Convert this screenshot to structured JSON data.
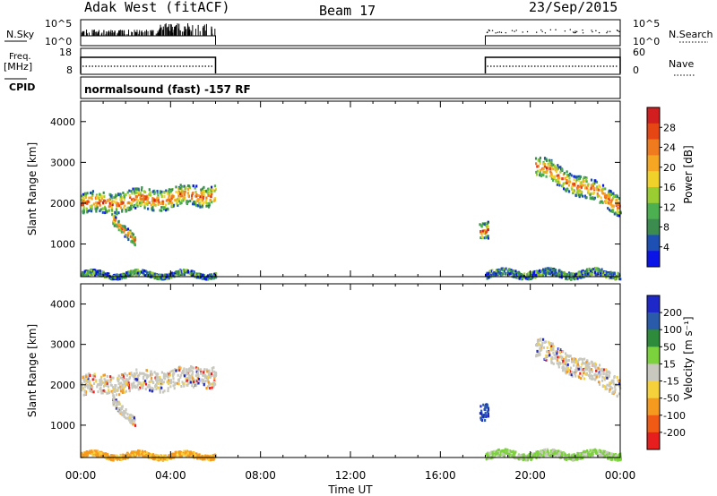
{
  "header": {
    "station": "Adak West (fitACF)",
    "beam": "Beam 17",
    "date": "23/Sep/2015"
  },
  "left_labels": {
    "nsky": "N.Sky",
    "freq": "Freq.",
    "mhz": "[MHz]",
    "cpid": "CPID"
  },
  "right_labels": {
    "nsearch": "N.Search",
    "nave": "Nave"
  },
  "cpid_text": "normalsound (fast) -157 RF",
  "x_axis": {
    "title": "Time UT",
    "ticks": [
      "00:00",
      "04:00",
      "08:00",
      "12:00",
      "16:00",
      "20:00",
      "00:00"
    ]
  },
  "colors": {
    "power": [
      "#0a14e6",
      "#1e50b4",
      "#3c8c50",
      "#4caf50",
      "#9acd32",
      "#f0d22a",
      "#f5a623",
      "#f07a1e",
      "#e64614",
      "#d21e1e"
    ],
    "velocity": [
      "#e61e1e",
      "#f05a14",
      "#f59a1e",
      "#f5d23c",
      "#c8c8be",
      "#7cd23c",
      "#2e8b3c",
      "#2a5aaa",
      "#1e28c8"
    ]
  },
  "chart_data": [
    {
      "type": "line",
      "name": "N.Sky / N.Search",
      "xlim": [
        0,
        24
      ],
      "ylim_labels": [
        "10^0",
        "10^5"
      ],
      "right_ylim_labels": [
        "10^0",
        "10^5"
      ],
      "segments": [
        [
          0,
          6
        ],
        [
          18,
          24
        ]
      ]
    },
    {
      "type": "line",
      "name": "Freq / Nave",
      "ylabel_left": "Freq. [MHz]",
      "left_ticks": [
        "8",
        "18"
      ],
      "right_ticks": [
        "0",
        "60"
      ],
      "segments": [
        [
          0,
          6
        ],
        [
          18,
          24
        ]
      ]
    },
    {
      "type": "heatmap",
      "name": "Power",
      "xlim": [
        0,
        24
      ],
      "ylim": [
        200,
        4500
      ],
      "ylabel": "Slant Range [km]",
      "y_ticks": [
        "1000",
        "2000",
        "3000",
        "4000"
      ],
      "colorbar_label": "Power [dB]",
      "colorbar_ticks": [
        "4",
        "8",
        "12",
        "16",
        "20",
        "24",
        "28"
      ],
      "bands": [
        {
          "x": [
            0.0,
            6.0
          ],
          "y_center": [
            2000,
            2250
          ],
          "width": 500
        },
        {
          "x": [
            1.4,
            2.4
          ],
          "y_center": [
            1700,
            1050
          ],
          "width": 250
        },
        {
          "x": [
            17.7,
            18.1
          ],
          "y_center": [
            1400,
            1400
          ],
          "width": 400
        },
        {
          "x": [
            20.2,
            24.0
          ],
          "y_center": [
            2950,
            2000
          ],
          "width": 500
        },
        {
          "x": [
            0.0,
            6.0
          ],
          "y_center": [
            280,
            280
          ],
          "width": 120
        },
        {
          "x": [
            18.0,
            24.0
          ],
          "y_center": [
            300,
            300
          ],
          "width": 160
        }
      ]
    },
    {
      "type": "heatmap",
      "name": "Velocity",
      "xlim": [
        0,
        24
      ],
      "ylim": [
        200,
        4500
      ],
      "ylabel": "Slant Range [km]",
      "y_ticks": [
        "1000",
        "2000",
        "3000",
        "4000"
      ],
      "colorbar_label": "Velocity [m s⁻¹]",
      "colorbar_ticks": [
        "200",
        "100",
        "50",
        "15",
        "-15",
        "-50",
        "-100",
        "-200"
      ],
      "bands": [
        {
          "x": [
            0.0,
            6.0
          ],
          "y_center": [
            2000,
            2250
          ],
          "width": 500
        },
        {
          "x": [
            1.4,
            2.4
          ],
          "y_center": [
            1700,
            1050
          ],
          "width": 250
        },
        {
          "x": [
            17.7,
            18.1
          ],
          "y_center": [
            1400,
            1400
          ],
          "width": 400
        },
        {
          "x": [
            20.2,
            24.0
          ],
          "y_center": [
            2950,
            2000
          ],
          "width": 500
        },
        {
          "x": [
            0.0,
            6.0
          ],
          "y_center": [
            280,
            280
          ],
          "width": 120
        },
        {
          "x": [
            18.0,
            24.0
          ],
          "y_center": [
            300,
            300
          ],
          "width": 160
        }
      ]
    }
  ]
}
